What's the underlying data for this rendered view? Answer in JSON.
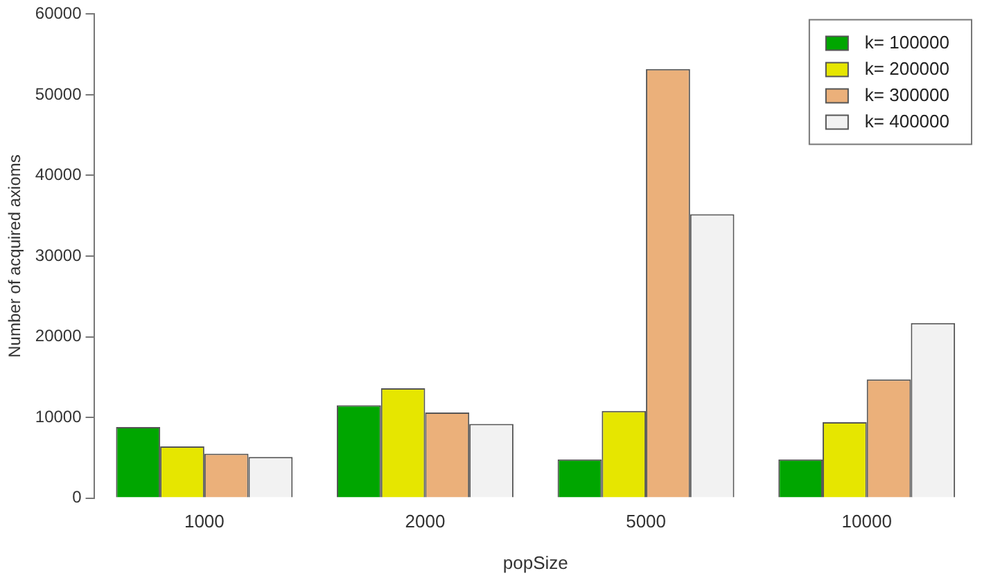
{
  "chart_data": {
    "type": "bar",
    "xlabel": "popSize",
    "ylabel": "Number of acquired axioms",
    "categories": [
      "1000",
      "2000",
      "5000",
      "10000"
    ],
    "series": [
      {
        "name": "k= 100000",
        "color": "#00a600",
        "values": [
          8800,
          11500,
          4800,
          4800
        ]
      },
      {
        "name": "k= 200000",
        "color": "#e6e600",
        "values": [
          6400,
          13600,
          10800,
          9400
        ]
      },
      {
        "name": "k= 300000",
        "color": "#ebb07a",
        "values": [
          5500,
          10600,
          53200,
          14700
        ]
      },
      {
        "name": "k= 400000",
        "color": "#f2f2f2",
        "values": [
          5100,
          9200,
          35200,
          21700
        ]
      }
    ],
    "ylim": [
      0,
      60000
    ],
    "yticks": [
      0,
      10000,
      20000,
      30000,
      40000,
      50000,
      60000
    ],
    "grid": false,
    "legend": "top right"
  }
}
